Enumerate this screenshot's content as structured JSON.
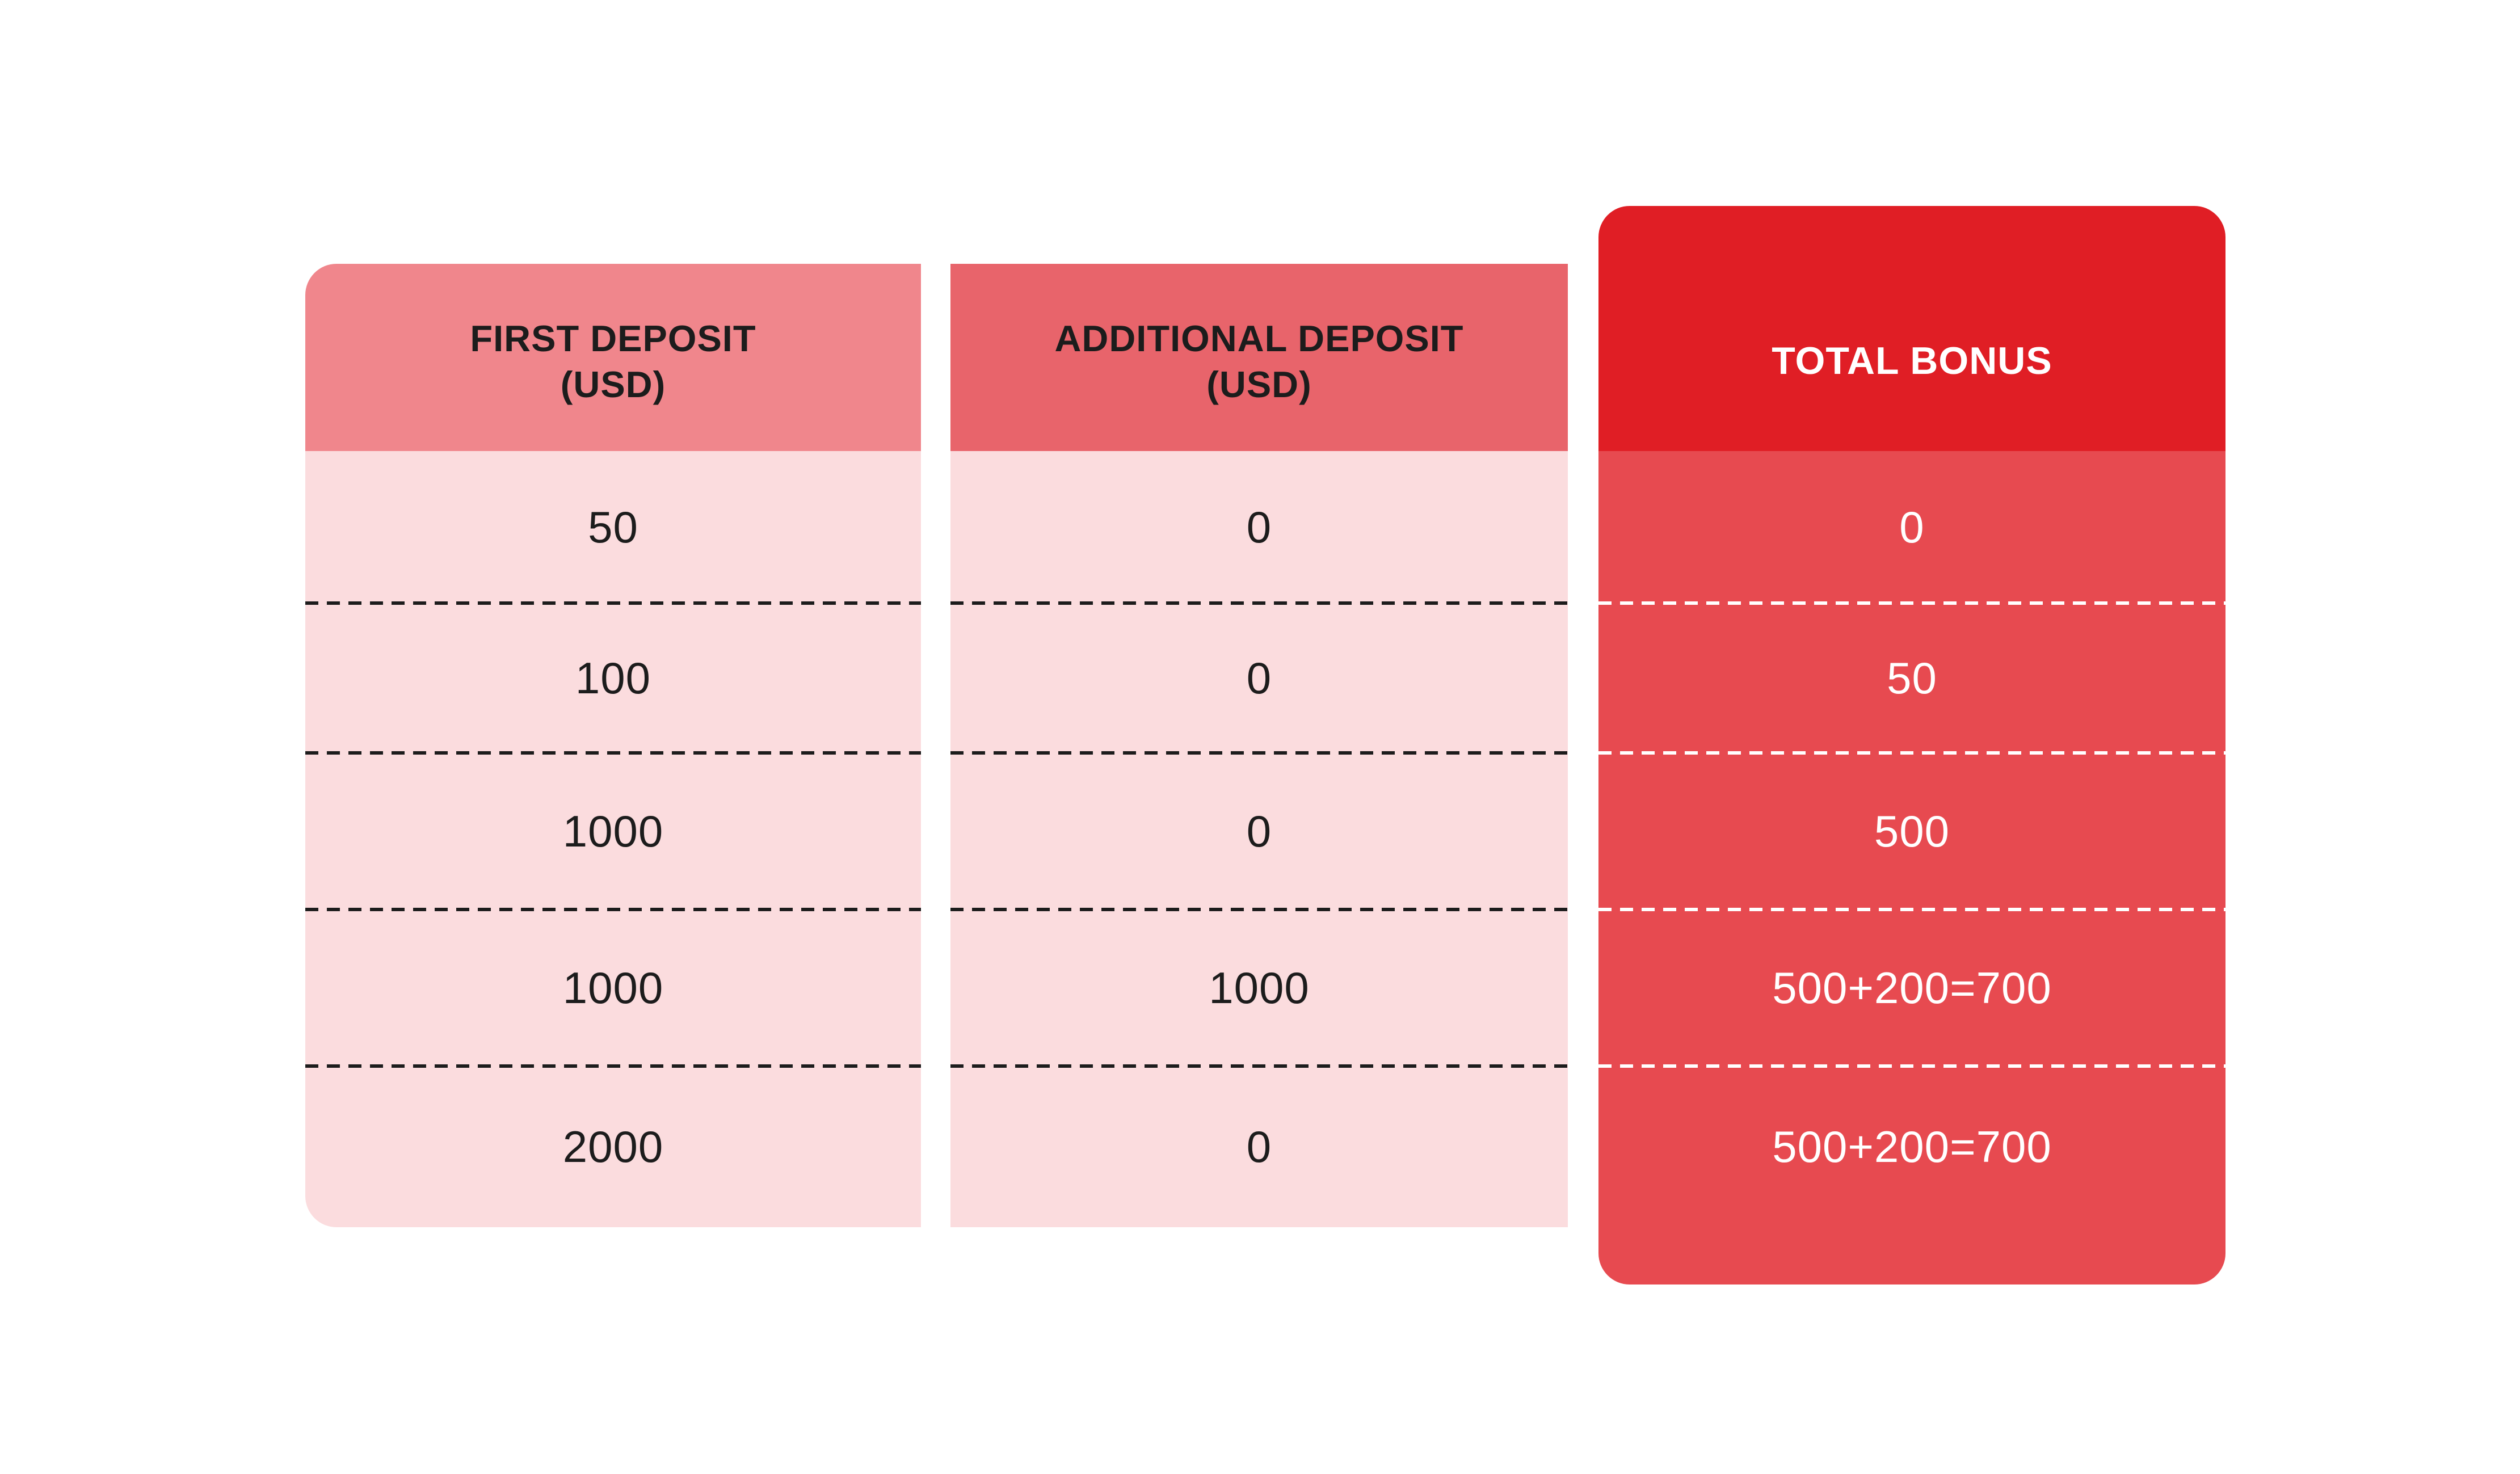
{
  "colors": {
    "background": "#FFFFFF",
    "first_deposit_header_bg": "#F0868C",
    "additional_deposit_header_bg": "#E8646B",
    "total_bonus_header_bg": "#E01E25",
    "deposit_body_bg": "#FBDCDE",
    "total_bonus_body_bg": "#E74A50",
    "dark_text": "#1C1C1C",
    "light_text": "#FFFFFF",
    "divider_dark": "#1C1C1C",
    "divider_light": "#FFFFFF"
  },
  "table": {
    "columns": [
      {
        "id": "first-deposit",
        "header_lines": [
          "FIRST DEPOSIT",
          "(USD)"
        ],
        "rows": [
          "50",
          "100",
          "1000",
          "1000",
          "2000"
        ]
      },
      {
        "id": "additional-deposit",
        "header_lines": [
          "ADDITIONAL DEPOSIT",
          "(USD)"
        ],
        "rows": [
          "0",
          "0",
          "0",
          "1000",
          "0"
        ]
      },
      {
        "id": "total-bonus",
        "header_lines": [
          "TOTAL BONUS"
        ],
        "rows": [
          "0",
          "50",
          "500",
          "500+200=700",
          "500+200=700"
        ]
      }
    ]
  },
  "chart_data": {
    "type": "table",
    "columns": [
      "FIRST DEPOSIT (USD)",
      "ADDITIONAL DEPOSIT (USD)",
      "TOTAL BONUS"
    ],
    "rows": [
      [
        "50",
        "0",
        "0"
      ],
      [
        "100",
        "0",
        "50"
      ],
      [
        "1000",
        "0",
        "500"
      ],
      [
        "1000",
        "1000",
        "500+200=700"
      ],
      [
        "2000",
        "0",
        "500+200=700"
      ]
    ],
    "title": "",
    "legend_position": "none",
    "grid": "dashed-row-separators"
  }
}
